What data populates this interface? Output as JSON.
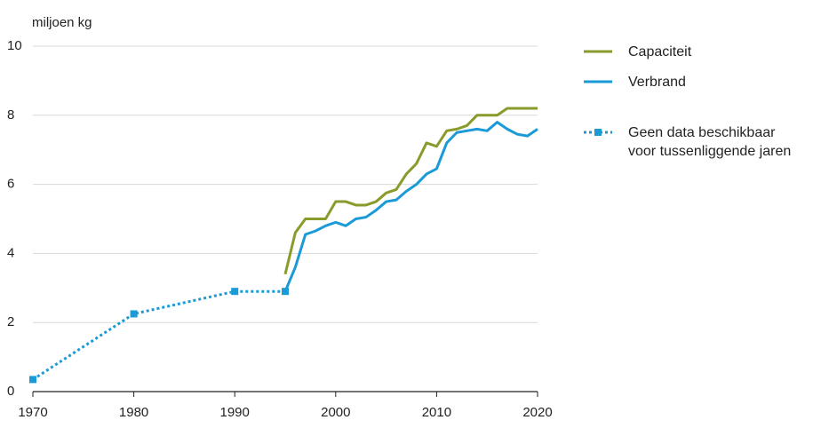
{
  "chart_data": {
    "type": "line",
    "y_label": "miljoen kg",
    "x": [
      1970,
      1980,
      1990,
      1995,
      1996,
      1997,
      1998,
      1999,
      2000,
      2001,
      2002,
      2003,
      2004,
      2005,
      2006,
      2007,
      2008,
      2009,
      2010,
      2011,
      2012,
      2013,
      2014,
      2015,
      2016,
      2017,
      2018,
      2019,
      2020
    ],
    "series": [
      {
        "name": "Capaciteit",
        "color": "#8a9a2b",
        "dash": "solid",
        "values": [
          null,
          null,
          null,
          3.4,
          4.6,
          5.0,
          5.0,
          5.0,
          5.5,
          5.5,
          5.4,
          5.4,
          5.5,
          5.75,
          5.85,
          6.3,
          6.6,
          7.2,
          7.1,
          7.55,
          7.6,
          7.7,
          8.0,
          8.0,
          8.0,
          8.2,
          8.2,
          8.2,
          8.2
        ]
      },
      {
        "name": "Verbrand",
        "color": "#1a9ad6",
        "dash": "solid",
        "values": [
          null,
          null,
          null,
          2.9,
          3.6,
          4.55,
          4.65,
          4.8,
          4.9,
          4.8,
          5.0,
          5.05,
          5.25,
          5.5,
          5.55,
          5.8,
          6.0,
          6.3,
          6.45,
          7.2,
          7.5,
          7.55,
          7.6,
          7.55,
          7.8,
          7.6,
          7.45,
          7.4,
          7.6
        ]
      },
      {
        "name": "Geen data beschikbaar voor tussenliggende jaren",
        "color": "#1a9ad6",
        "dash": "dotted",
        "marker": "square",
        "values": [
          0.35,
          2.25,
          2.9,
          2.9,
          null,
          null,
          null,
          null,
          null,
          null,
          null,
          null,
          null,
          null,
          null,
          null,
          null,
          null,
          null,
          null,
          null,
          null,
          null,
          null,
          null,
          null,
          null,
          null,
          null
        ]
      }
    ],
    "xlim": [
      1970,
      2020
    ],
    "xticks": [
      1970,
      1980,
      1990,
      2000,
      2010,
      2020
    ],
    "ylim": [
      0,
      10
    ],
    "yticks": [
      0,
      2,
      4,
      6,
      8,
      10
    ],
    "grid": true,
    "legend": "right"
  }
}
